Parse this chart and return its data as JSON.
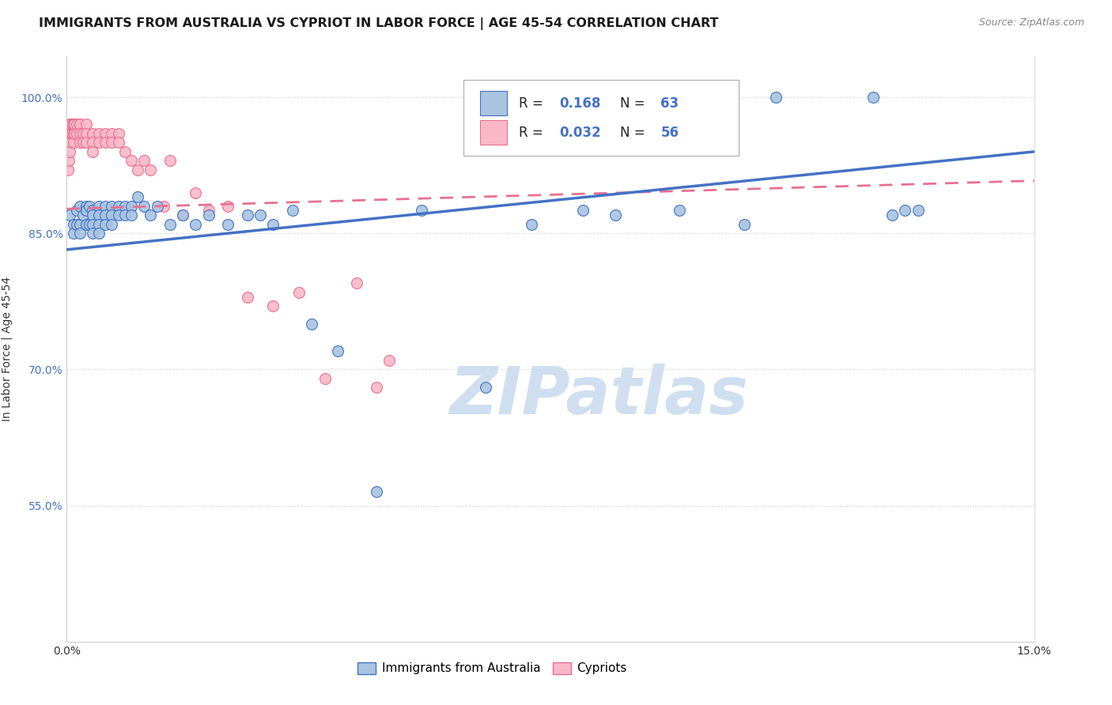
{
  "title": "IMMIGRANTS FROM AUSTRALIA VS CYPRIOT IN LABOR FORCE | AGE 45-54 CORRELATION CHART",
  "source": "Source: ZipAtlas.com",
  "ylabel": "In Labor Force | Age 45-54",
  "x_min": 0.0,
  "x_max": 0.15,
  "y_min": 0.4,
  "y_max": 1.045,
  "x_ticks": [
    0.0,
    0.15
  ],
  "x_tick_labels": [
    "0.0%",
    "15.0%"
  ],
  "y_ticks": [
    0.55,
    0.7,
    0.85,
    1.0
  ],
  "y_tick_labels": [
    "55.0%",
    "70.0%",
    "85.0%",
    "100.0%"
  ],
  "blue_scatter_x": [
    0.0005,
    0.001,
    0.001,
    0.0015,
    0.0015,
    0.002,
    0.002,
    0.002,
    0.0025,
    0.003,
    0.003,
    0.003,
    0.003,
    0.0035,
    0.0035,
    0.004,
    0.004,
    0.004,
    0.004,
    0.005,
    0.005,
    0.005,
    0.005,
    0.006,
    0.006,
    0.006,
    0.007,
    0.007,
    0.007,
    0.008,
    0.008,
    0.009,
    0.009,
    0.01,
    0.01,
    0.011,
    0.012,
    0.013,
    0.014,
    0.016,
    0.018,
    0.02,
    0.022,
    0.025,
    0.028,
    0.03,
    0.032,
    0.035,
    0.038,
    0.042,
    0.048,
    0.055,
    0.065,
    0.072,
    0.08,
    0.085,
    0.095,
    0.105,
    0.11,
    0.125,
    0.128,
    0.13,
    0.132
  ],
  "blue_scatter_y": [
    0.87,
    0.86,
    0.85,
    0.875,
    0.86,
    0.88,
    0.86,
    0.85,
    0.87,
    0.875,
    0.86,
    0.88,
    0.875,
    0.86,
    0.88,
    0.875,
    0.87,
    0.86,
    0.85,
    0.88,
    0.87,
    0.86,
    0.85,
    0.88,
    0.87,
    0.86,
    0.88,
    0.87,
    0.86,
    0.88,
    0.87,
    0.88,
    0.87,
    0.88,
    0.87,
    0.89,
    0.88,
    0.87,
    0.88,
    0.86,
    0.87,
    0.86,
    0.87,
    0.86,
    0.87,
    0.87,
    0.86,
    0.875,
    0.75,
    0.72,
    0.565,
    0.875,
    0.68,
    0.86,
    0.875,
    0.87,
    0.875,
    0.86,
    1.0,
    1.0,
    0.87,
    0.875,
    0.875
  ],
  "pink_scatter_x": [
    0.0002,
    0.0003,
    0.0004,
    0.0005,
    0.0005,
    0.0006,
    0.0007,
    0.0007,
    0.0008,
    0.0008,
    0.001,
    0.001,
    0.001,
    0.001,
    0.0012,
    0.0012,
    0.0015,
    0.0015,
    0.002,
    0.002,
    0.002,
    0.002,
    0.0025,
    0.0025,
    0.003,
    0.003,
    0.003,
    0.004,
    0.004,
    0.004,
    0.005,
    0.005,
    0.006,
    0.006,
    0.007,
    0.007,
    0.008,
    0.008,
    0.009,
    0.01,
    0.011,
    0.012,
    0.013,
    0.015,
    0.016,
    0.018,
    0.02,
    0.022,
    0.025,
    0.028,
    0.032,
    0.036,
    0.04,
    0.045,
    0.048,
    0.05
  ],
  "pink_scatter_y": [
    0.92,
    0.93,
    0.94,
    0.97,
    0.96,
    0.97,
    0.96,
    0.95,
    0.97,
    0.96,
    0.97,
    0.96,
    0.95,
    0.97,
    0.97,
    0.96,
    0.97,
    0.96,
    0.97,
    0.97,
    0.96,
    0.95,
    0.96,
    0.95,
    0.97,
    0.96,
    0.95,
    0.96,
    0.95,
    0.94,
    0.96,
    0.95,
    0.96,
    0.95,
    0.96,
    0.95,
    0.96,
    0.95,
    0.94,
    0.93,
    0.92,
    0.93,
    0.92,
    0.88,
    0.93,
    0.87,
    0.895,
    0.875,
    0.88,
    0.78,
    0.77,
    0.785,
    0.69,
    0.795,
    0.68,
    0.71
  ],
  "blue_line_x": [
    0.0,
    0.15
  ],
  "blue_line_y": [
    0.832,
    0.94
  ],
  "pink_line_x": [
    0.0,
    0.15
  ],
  "pink_line_y": [
    0.877,
    0.908
  ],
  "blue_dot_color": "#a8c4e0",
  "blue_edge_color": "#4472c4",
  "pink_dot_color": "#f9b8c8",
  "pink_edge_color": "#e87090",
  "blue_line_color": "#4472c4",
  "pink_line_color": "#e87090",
  "watermark": "ZIPatlas",
  "watermark_color": "#d0dff0",
  "grid_color": "#cccccc",
  "y_axis_color": "#4472c4",
  "title_fontsize": 11.5,
  "source_fontsize": 9,
  "tick_fontsize": 10,
  "legend_R1": "0.168",
  "legend_N1": "63",
  "legend_R2": "0.032",
  "legend_N2": "56",
  "legend_label1": "Immigrants from Australia",
  "legend_label2": "Cypriots"
}
